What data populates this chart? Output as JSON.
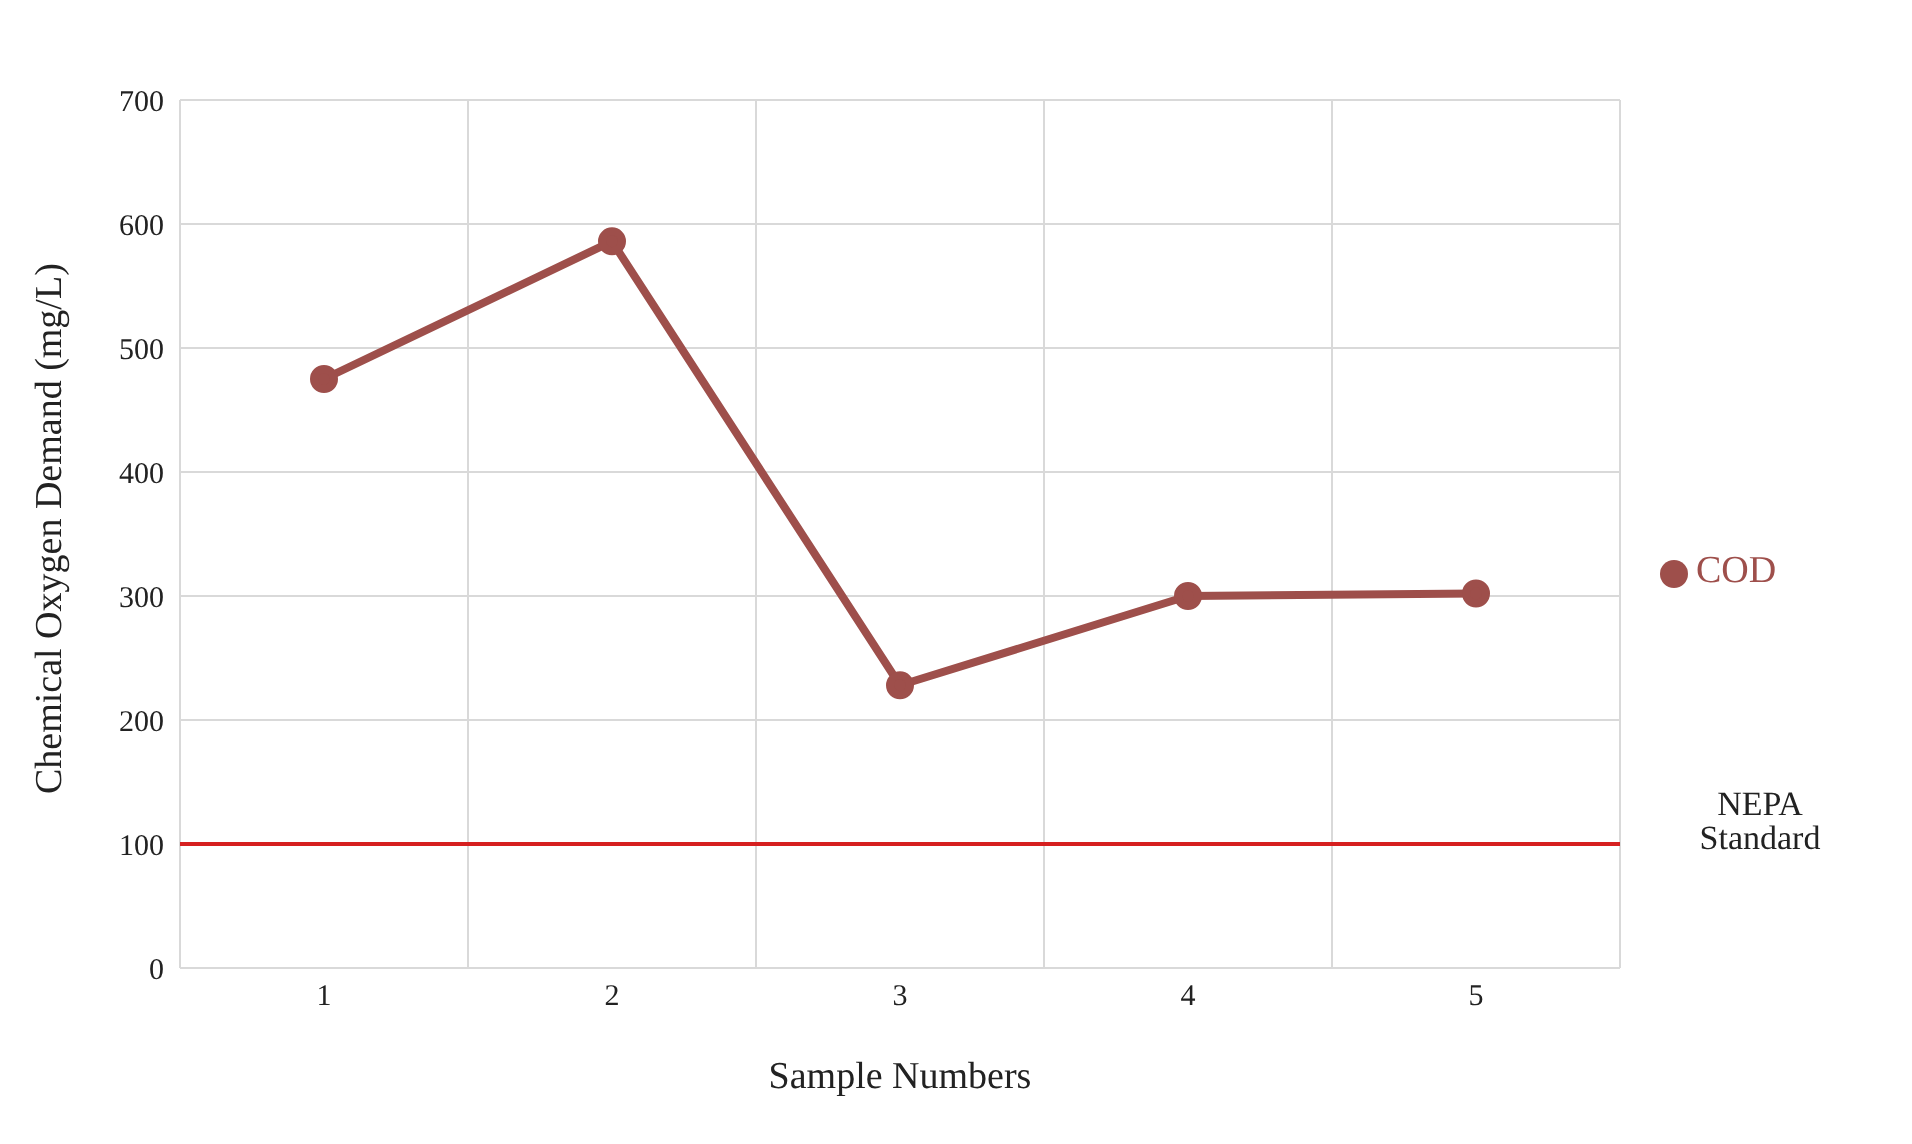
{
  "chart_data": {
    "type": "line",
    "xlabel": "Sample Numbers",
    "ylabel": "Chemical Oxygen Demand (mg/L)",
    "categories": [
      "1",
      "2",
      "3",
      "4",
      "5"
    ],
    "series": [
      {
        "name": "COD",
        "color": "#9e4f4b",
        "values": [
          475,
          586,
          228,
          300,
          302
        ]
      }
    ],
    "ylim": [
      0,
      700
    ],
    "yticks": [
      0,
      100,
      200,
      300,
      400,
      500,
      600,
      700
    ],
    "grid": true,
    "legend": "right",
    "marker": "circle",
    "line_style": "solid",
    "ref_lines": [
      {
        "axis": "y",
        "value": 100,
        "label": "NEPA Standard",
        "color": "#d62020"
      }
    ]
  }
}
